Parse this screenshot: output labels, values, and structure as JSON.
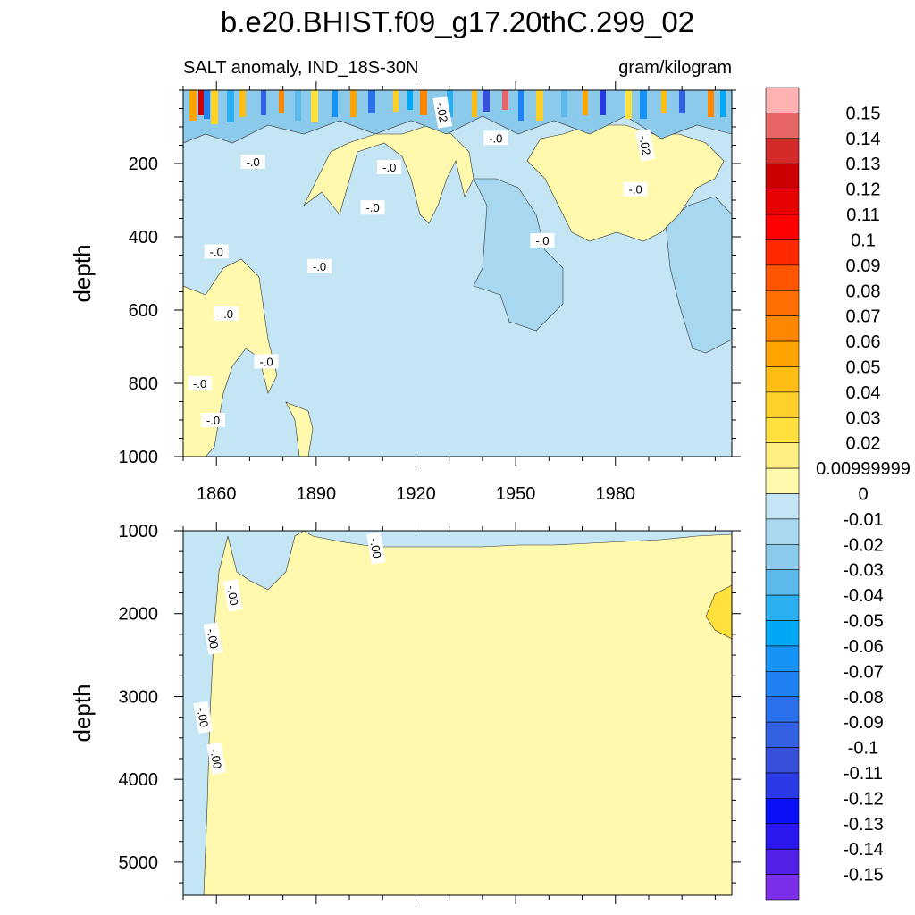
{
  "title": "b.e20.BHIST.f09_g17.20thC.299_02",
  "subtitle_left": "SALT anomaly, IND_18S-30N",
  "subtitle_right": "gram/kilogram",
  "chart_data": [
    {
      "type": "heatmap",
      "panel": "upper",
      "ylabel": "depth",
      "xlim": [
        1850,
        2015
      ],
      "ylim": [
        0,
        1000
      ],
      "y_reversed": true,
      "x_ticks": [
        "1860",
        "1890",
        "1920",
        "1950",
        "1980"
      ],
      "x_tick_values": [
        1860,
        1890,
        1920,
        1950,
        1980
      ],
      "y_ticks": [
        "200",
        "400",
        "600",
        "800",
        "1000"
      ],
      "y_tick_values": [
        200,
        400,
        600,
        800,
        1000
      ],
      "contour_labels": [
        {
          "text": "-.02",
          "x": 1928,
          "y": 60
        },
        {
          "text": "-.0",
          "x": 1944,
          "y": 130
        },
        {
          "text": "-.02",
          "x": 1989,
          "y": 150
        },
        {
          "text": "-.0",
          "x": 1871,
          "y": 195
        },
        {
          "text": "-.0",
          "x": 1912,
          "y": 210
        },
        {
          "text": "-.0",
          "x": 1986,
          "y": 270
        },
        {
          "text": "-.0",
          "x": 1907,
          "y": 320
        },
        {
          "text": "-.0",
          "x": 1958,
          "y": 410
        },
        {
          "text": "-.0",
          "x": 1860,
          "y": 440
        },
        {
          "text": "-.0",
          "x": 1891,
          "y": 480
        },
        {
          "text": "-.0",
          "x": 1863,
          "y": 610
        },
        {
          "text": "-.0",
          "x": 1875,
          "y": 740
        },
        {
          "text": "-.0",
          "x": 1855,
          "y": 800
        },
        {
          "text": "-.0",
          "x": 1859,
          "y": 900
        }
      ],
      "regions": [
        {
          "value": 0.005,
          "description": "positive anomaly patches near surface and 200-450 m"
        },
        {
          "value": -0.005,
          "description": "background slightly negative"
        },
        {
          "value": -0.015,
          "description": "deeper negative tongues near 1940-1960 and 1990-2015"
        }
      ]
    },
    {
      "type": "heatmap",
      "panel": "lower",
      "ylabel": "depth",
      "xlim": [
        1850,
        2015
      ],
      "ylim": [
        1000,
        5400
      ],
      "y_reversed": true,
      "x_tick_values": [
        1860,
        1890,
        1920,
        1950,
        1980
      ],
      "y_ticks": [
        "1000",
        "2000",
        "3000",
        "4000",
        "5000"
      ],
      "y_tick_values": [
        1000,
        2000,
        3000,
        4000,
        5000
      ],
      "contour_labels": [
        {
          "text": "-.00",
          "x": 1908,
          "y": 1210
        },
        {
          "text": "-.00",
          "x": 1865,
          "y": 1780
        },
        {
          "text": "-.00",
          "x": 1859,
          "y": 2300
        },
        {
          "text": "-.00",
          "x": 1856,
          "y": 3250
        },
        {
          "text": "-.00",
          "x": 1860,
          "y": 3750
        }
      ],
      "regions": [
        {
          "value": 0.005,
          "description": "most of domain slightly positive"
        },
        {
          "value": -0.005,
          "description": "left edge and top band slightly negative"
        }
      ]
    }
  ],
  "colorbar": {
    "labels": [
      "0.15",
      "0.14",
      "0.13",
      "0.12",
      "0.11",
      "0.1",
      "0.09",
      "0.08",
      "0.07",
      "0.06",
      "0.05",
      "0.04",
      "0.03",
      "0.02",
      "0.00999999",
      "0",
      "-0.01",
      "-0.02",
      "-0.03",
      "-0.04",
      "-0.05",
      "-0.06",
      "-0.07",
      "-0.08",
      "-0.09",
      "-0.1",
      "-0.11",
      "-0.12",
      "-0.13",
      "-0.14",
      "-0.15"
    ],
    "colors": [
      "#FFB2B2",
      "#E86565",
      "#D42A2A",
      "#CC0000",
      "#E60000",
      "#FF0000",
      "#FF2A00",
      "#FF5500",
      "#FF6E00",
      "#FF8700",
      "#FFA400",
      "#FFBE14",
      "#FFD028",
      "#FFE03C",
      "#FFEE80",
      "#FFF9AE",
      "#C4E5F3",
      "#A8D8F0",
      "#8CCAEC",
      "#5BBAEB",
      "#2AB0F0",
      "#00A8F5",
      "#1693F7",
      "#1E82F4",
      "#2A70EC",
      "#3460E4",
      "#3650DC",
      "#2A3AE8",
      "#0A10F8",
      "#2A18F0",
      "#5020E8",
      "#7C2EE8"
    ]
  }
}
